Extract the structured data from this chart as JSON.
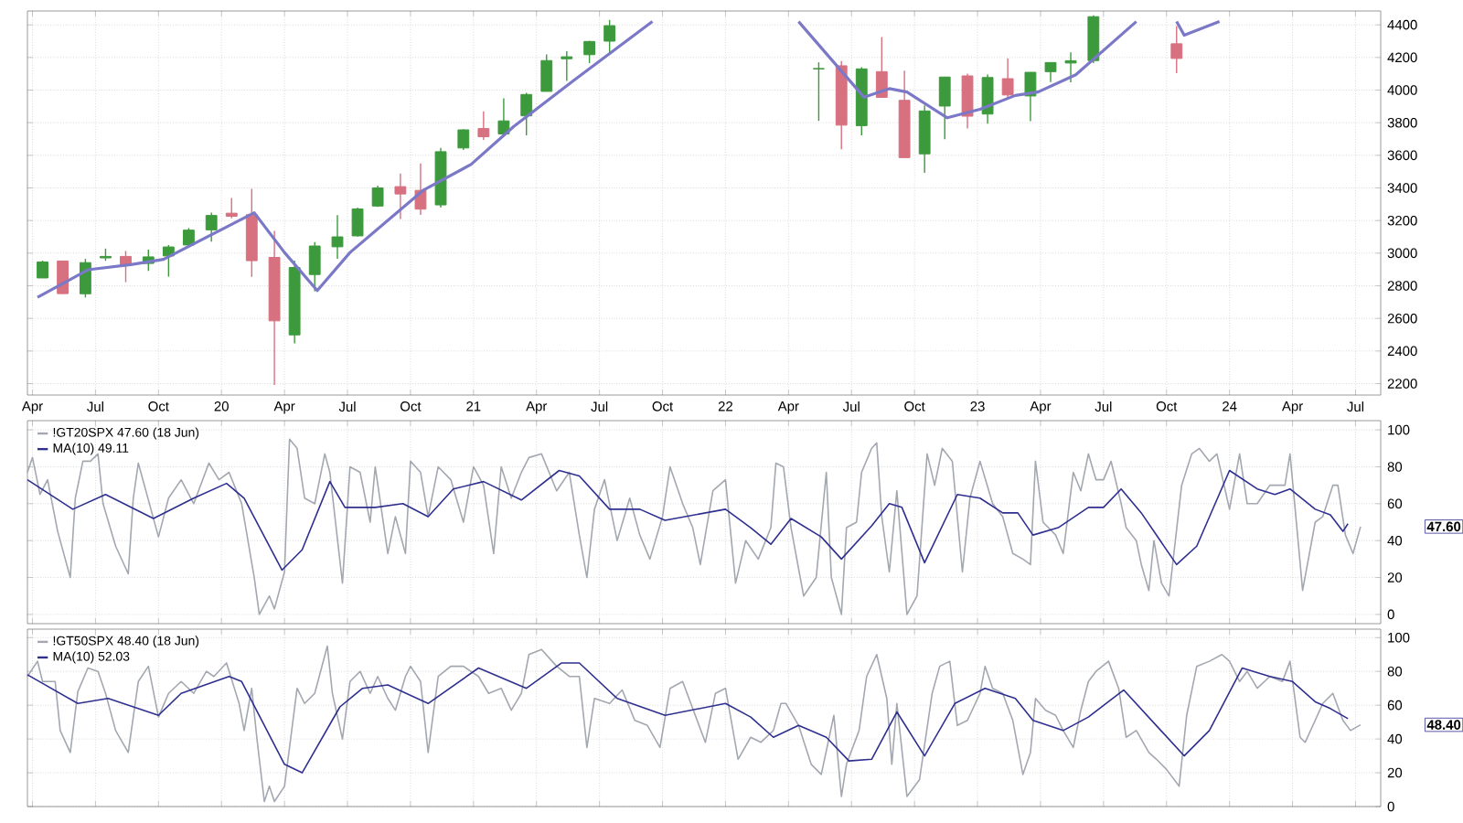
{
  "chart_data": [
    {
      "type": "candlestick",
      "xlim": [
        2019.23,
        2024.6
      ],
      "ylim": [
        2130,
        4485
      ],
      "grid": true,
      "xticks": [
        {
          "value": 2019.25,
          "label": "Apr"
        },
        {
          "value": 2019.5,
          "label": "Jul"
        },
        {
          "value": 2019.75,
          "label": "Oct"
        },
        {
          "value": 2020,
          "label": "20"
        },
        {
          "value": 2020.25,
          "label": "Apr"
        },
        {
          "value": 2020.5,
          "label": "Jul"
        },
        {
          "value": 2020.75,
          "label": "Oct"
        },
        {
          "value": 2021,
          "label": "21"
        },
        {
          "value": 2021.25,
          "label": "Apr"
        },
        {
          "value": 2021.5,
          "label": "Jul"
        },
        {
          "value": 2021.75,
          "label": "Oct"
        },
        {
          "value": 2022,
          "label": "22"
        },
        {
          "value": 2022.25,
          "label": "Apr"
        },
        {
          "value": 2022.5,
          "label": "Jul"
        },
        {
          "value": 2022.75,
          "label": "Oct"
        },
        {
          "value": 2023,
          "label": "23"
        },
        {
          "value": 2023.25,
          "label": "Apr"
        },
        {
          "value": 2023.5,
          "label": "Jul"
        },
        {
          "value": 2023.75,
          "label": "Oct"
        },
        {
          "value": 2024,
          "label": "24"
        },
        {
          "value": 2024.25,
          "label": "Apr"
        },
        {
          "value": 2024.5,
          "label": "Jul"
        }
      ],
      "yticks": [
        2200,
        2400,
        2600,
        2800,
        3000,
        3200,
        3400,
        3600,
        3800,
        4000,
        4200,
        4400
      ],
      "x": [
        2019.29,
        2019.37,
        2019.46,
        2019.54,
        2019.62,
        2019.71,
        2019.79,
        2019.87,
        2019.96,
        2020.04,
        2020.12,
        2020.21,
        2020.29,
        2020.37,
        2020.46,
        2020.54,
        2020.62,
        2020.71,
        2020.79,
        2020.87,
        2020.96,
        2021.04,
        2021.12,
        2021.21,
        2021.29,
        2021.37,
        2021.46,
        2021.54,
        2022.37,
        2022.46,
        2022.54,
        2022.62,
        2022.71,
        2022.79,
        2022.87,
        2022.96,
        2023.04,
        2023.12,
        2023.21,
        2023.29,
        2023.37,
        2023.46,
        2023.79
      ],
      "ohlc": [
        [
          2848,
          2954,
          2848,
          2946
        ],
        [
          2952,
          2954,
          2750,
          2752
        ],
        [
          2751,
          2965,
          2728,
          2942
        ],
        [
          2971,
          3028,
          2953,
          2980
        ],
        [
          2980,
          3014,
          2822,
          2926
        ],
        [
          2937,
          3022,
          2891,
          2977
        ],
        [
          2983,
          3050,
          2856,
          3038
        ],
        [
          3050,
          3154,
          3050,
          3141
        ],
        [
          3143,
          3248,
          3070,
          3231
        ],
        [
          3245,
          3338,
          3214,
          3226
        ],
        [
          3236,
          3394,
          2855,
          2954
        ],
        [
          2974,
          3136,
          2192,
          2585
        ],
        [
          2499,
          2954,
          2447,
          2912
        ],
        [
          2869,
          3068,
          2767,
          3044
        ],
        [
          3039,
          3233,
          2966,
          3100
        ],
        [
          3106,
          3280,
          3101,
          3271
        ],
        [
          3289,
          3414,
          3284,
          3400
        ],
        [
          3408,
          3488,
          3210,
          3363
        ],
        [
          3385,
          3550,
          3234,
          3270
        ],
        [
          3296,
          3646,
          3280,
          3622
        ],
        [
          3645,
          3760,
          3633,
          3756
        ],
        [
          3764,
          3870,
          3694,
          3714
        ],
        [
          3731,
          3950,
          3725,
          3811
        ],
        [
          3842,
          3983,
          3723,
          3973
        ],
        [
          3992,
          4218,
          3992,
          4181
        ],
        [
          4192,
          4238,
          4056,
          4204
        ],
        [
          4217,
          4302,
          4165,
          4298
        ],
        [
          4300,
          4430,
          4233,
          4395
        ],
        [
          4130,
          4170,
          3811,
          4132
        ],
        [
          4149,
          4178,
          3637,
          3785
        ],
        [
          3782,
          4140,
          3722,
          4130
        ],
        [
          4113,
          4325,
          3955,
          3955
        ],
        [
          3937,
          4119,
          3584,
          3586
        ],
        [
          3609,
          3906,
          3492,
          3872
        ],
        [
          3902,
          4080,
          3699,
          4080
        ],
        [
          4087,
          4101,
          3764,
          3840
        ],
        [
          3853,
          4095,
          3794,
          4077
        ],
        [
          4070,
          4195,
          3943,
          3970
        ],
        [
          3964,
          4110,
          3809,
          4109
        ],
        [
          4113,
          4170,
          4049,
          4169
        ],
        [
          4166,
          4231,
          4048,
          4180
        ],
        [
          4181,
          4458,
          4166,
          4450
        ],
        [
          4284,
          4393,
          4104,
          4194
        ]
      ],
      "series": [
        {
          "type": "line",
          "color": "#7b78c8",
          "x": [
            2019.27,
            2019.47,
            2019.64,
            2019.77,
            2020.13,
            2020.25,
            2020.38,
            2020.51,
            2020.8,
            2020.99,
            2021.16,
            2021.4,
            2021.71,
            2021.9,
            2022.29,
            2022.55,
            2022.65,
            2022.72,
            2022.88,
            2023.01,
            2023.15,
            2023.24,
            2023.39,
            2023.63,
            2023.7,
            2023.79,
            2023.82,
            2023.96
          ],
          "values": [
            2729,
            2898,
            2930,
            2962,
            3248,
            3004,
            2771,
            3004,
            3385,
            3544,
            3777,
            4062,
            4420,
            null,
            4420,
            3956,
            4009,
            3988,
            3830,
            3882,
            3967,
            3988,
            4094,
            4420,
            null,
            4420,
            4337,
            4420
          ]
        }
      ]
    },
    {
      "type": "line",
      "xlim": [
        2019.23,
        2024.6
      ],
      "ylim": [
        -5,
        105
      ],
      "grid": true,
      "legend": "top left",
      "tick_labels": "y",
      "xticks": [
        {
          "value": 2019.25,
          "label": null
        },
        {
          "value": 2019.5,
          "label": null
        },
        {
          "value": 2019.75,
          "label": null
        },
        {
          "value": 2020,
          "label": null
        },
        {
          "value": 2020.25,
          "label": null
        },
        {
          "value": 2020.5,
          "label": null
        },
        {
          "value": 2020.75,
          "label": null
        },
        {
          "value": 2021,
          "label": null
        },
        {
          "value": 2021.25,
          "label": null
        },
        {
          "value": 2021.5,
          "label": null
        },
        {
          "value": 2021.75,
          "label": null
        },
        {
          "value": 2022,
          "label": null
        },
        {
          "value": 2022.25,
          "label": null
        },
        {
          "value": 2022.5,
          "label": null
        },
        {
          "value": 2022.75,
          "label": null
        },
        {
          "value": 2023,
          "label": null
        },
        {
          "value": 2023.25,
          "label": null
        },
        {
          "value": 2023.5,
          "label": null
        },
        {
          "value": 2023.75,
          "label": null
        },
        {
          "value": 2024,
          "label": null
        },
        {
          "value": 2024.25,
          "label": null
        },
        {
          "value": 2024.5,
          "label": null
        }
      ],
      "yticks": [
        0,
        20,
        40,
        60,
        80,
        100
      ],
      "annotations": [
        "47.60"
      ],
      "series": [
        {
          "name": "!GT20SPX 47.60 (18 Jun)",
          "color": "#a3a7b0",
          "x": [
            2019.23,
            2019.25,
            2019.28,
            2019.31,
            2019.35,
            2019.4,
            2019.42,
            2019.45,
            2019.48,
            2019.51,
            2019.53,
            2019.58,
            2019.63,
            2019.65,
            2019.67,
            2019.75,
            2019.79,
            2019.84,
            2019.89,
            2019.95,
            2019.99,
            2020.03,
            2020.08,
            2020.13,
            2020.15,
            2020.19,
            2020.21,
            2020.25,
            2020.27,
            2020.3,
            2020.33,
            2020.37,
            2020.41,
            2020.43,
            2020.48,
            2020.51,
            2020.55,
            2020.59,
            2020.61,
            2020.66,
            2020.69,
            2020.73,
            2020.75,
            2020.79,
            2020.82,
            2020.86,
            2020.91,
            2020.96,
            2021.0,
            2021.04,
            2021.08,
            2021.11,
            2021.15,
            2021.19,
            2021.22,
            2021.27,
            2021.33,
            2021.38,
            2021.42,
            2021.45,
            2021.48,
            2021.52,
            2021.57,
            2021.62,
            2021.66,
            2021.7,
            2021.75,
            2021.78,
            2021.83,
            2021.87,
            2021.9,
            2021.95,
            2022.0,
            2022.04,
            2022.08,
            2022.13,
            2022.18,
            2022.2,
            2022.23,
            2022.26,
            2022.31,
            2022.36,
            2022.4,
            2022.42,
            2022.46,
            2022.48,
            2022.52,
            2022.54,
            2022.58,
            2022.6,
            2022.62,
            2022.65,
            2022.68,
            2022.72,
            2022.76,
            2022.8,
            2022.83,
            2022.86,
            2022.9,
            2022.94,
            2022.97,
            2023.01,
            2023.06,
            2023.1,
            2023.14,
            2023.18,
            2023.21,
            2023.23,
            2023.26,
            2023.31,
            2023.34,
            2023.38,
            2023.41,
            2023.44,
            2023.47,
            2023.5,
            2023.53,
            2023.57,
            2023.59,
            2023.63,
            2023.65,
            2023.68,
            2023.7,
            2023.73,
            2023.76,
            2023.81,
            2023.85,
            2023.88,
            2023.92,
            2023.95,
            2024.0,
            2024.04,
            2024.07,
            2024.11,
            2024.16,
            2024.22,
            2024.24,
            2024.27,
            2024.29,
            2024.34,
            2024.37,
            2024.41,
            2024.43,
            2024.46,
            2024.49,
            2024.52
          ],
          "values": [
            77,
            85,
            65,
            73,
            45,
            20,
            63,
            83,
            83,
            87,
            60,
            37,
            22,
            63,
            82,
            42,
            63,
            73,
            60,
            82,
            73,
            77,
            60,
            20,
            0,
            10,
            3,
            23,
            95,
            90,
            63,
            60,
            87,
            77,
            17,
            80,
            77,
            50,
            80,
            33,
            53,
            33,
            83,
            77,
            53,
            80,
            73,
            50,
            80,
            70,
            33,
            80,
            63,
            77,
            85,
            87,
            67,
            77,
            43,
            20,
            57,
            73,
            40,
            63,
            43,
            30,
            53,
            80,
            60,
            47,
            27,
            67,
            73,
            17,
            40,
            30,
            47,
            82,
            80,
            47,
            10,
            20,
            77,
            20,
            0,
            47,
            50,
            77,
            90,
            93,
            53,
            23,
            67,
            0,
            10,
            87,
            70,
            90,
            83,
            23,
            63,
            83,
            60,
            53,
            33,
            30,
            27,
            83,
            50,
            43,
            33,
            77,
            67,
            87,
            73,
            73,
            83,
            60,
            47,
            40,
            27,
            13,
            40,
            17,
            10,
            70,
            87,
            90,
            83,
            87,
            57,
            87,
            60,
            60,
            70,
            70,
            87,
            43,
            13,
            50,
            53,
            70,
            70,
            43,
            33,
            47.6
          ]
        },
        {
          "name": "MA(10) 49.11",
          "color": "#2e2f8f",
          "x": [
            2019.23,
            2019.41,
            2019.54,
            2019.73,
            2019.89,
            2020.02,
            2020.09,
            2020.24,
            2020.32,
            2020.43,
            2020.49,
            2020.61,
            2020.72,
            2020.82,
            2020.92,
            2021.04,
            2021.19,
            2021.34,
            2021.42,
            2021.54,
            2021.66,
            2021.76,
            2022.0,
            2022.1,
            2022.18,
            2022.26,
            2022.38,
            2022.46,
            2022.58,
            2022.65,
            2022.7,
            2022.79,
            2022.92,
            2023.01,
            2023.1,
            2023.16,
            2023.22,
            2023.32,
            2023.44,
            2023.5,
            2023.57,
            2023.65,
            2023.79,
            2023.87,
            2024.0,
            2024.11,
            2024.18,
            2024.24,
            2024.34,
            2024.4,
            2024.45,
            2024.47
          ],
          "values": [
            73,
            57,
            65,
            52,
            63,
            71,
            63,
            24,
            35,
            72,
            58,
            58,
            60,
            53,
            68,
            72,
            62,
            78,
            75,
            57,
            57,
            51,
            57,
            47,
            38,
            52,
            42,
            30,
            48,
            60,
            58,
            28,
            65,
            63,
            55,
            55,
            43,
            47,
            58,
            58,
            68,
            55,
            27,
            37,
            78,
            68,
            65,
            68,
            57,
            54,
            45,
            49.11
          ]
        }
      ]
    },
    {
      "type": "line",
      "xlim": [
        2019.23,
        2024.6
      ],
      "ylim": [
        0,
        105
      ],
      "grid": true,
      "legend": "top left",
      "tick_labels": "y",
      "xticks": [
        {
          "value": 2019.25,
          "label": null
        },
        {
          "value": 2019.5,
          "label": null
        },
        {
          "value": 2019.75,
          "label": null
        },
        {
          "value": 2020,
          "label": null
        },
        {
          "value": 2020.25,
          "label": null
        },
        {
          "value": 2020.5,
          "label": null
        },
        {
          "value": 2020.75,
          "label": null
        },
        {
          "value": 2021,
          "label": null
        },
        {
          "value": 2021.25,
          "label": null
        },
        {
          "value": 2021.5,
          "label": null
        },
        {
          "value": 2021.75,
          "label": null
        },
        {
          "value": 2022,
          "label": null
        },
        {
          "value": 2022.25,
          "label": null
        },
        {
          "value": 2022.5,
          "label": null
        },
        {
          "value": 2022.75,
          "label": null
        },
        {
          "value": 2023,
          "label": null
        },
        {
          "value": 2023.25,
          "label": null
        },
        {
          "value": 2023.5,
          "label": null
        },
        {
          "value": 2023.75,
          "label": null
        },
        {
          "value": 2024,
          "label": null
        },
        {
          "value": 2024.25,
          "label": null
        },
        {
          "value": 2024.5,
          "label": null
        }
      ],
      "yticks": [
        0,
        20,
        40,
        60,
        80,
        100
      ],
      "annotations": [
        "48.40"
      ],
      "series": [
        {
          "name": "!GT50SPX 48.40 (18 Jun)",
          "color": "#a3a7b0",
          "x": [
            2019.23,
            2019.27,
            2019.29,
            2019.34,
            2019.36,
            2019.4,
            2019.43,
            2019.47,
            2019.51,
            2019.54,
            2019.58,
            2019.63,
            2019.67,
            2019.71,
            2019.75,
            2019.79,
            2019.84,
            2019.89,
            2019.94,
            2019.97,
            2020.02,
            2020.07,
            2020.09,
            2020.12,
            2020.14,
            2020.17,
            2020.19,
            2020.21,
            2020.25,
            2020.27,
            2020.3,
            2020.33,
            2020.37,
            2020.42,
            2020.44,
            2020.48,
            2020.51,
            2020.55,
            2020.59,
            2020.62,
            2020.66,
            2020.69,
            2020.73,
            2020.75,
            2020.79,
            2020.82,
            2020.86,
            2020.91,
            2020.96,
            2021.02,
            2021.06,
            2021.11,
            2021.15,
            2021.19,
            2021.22,
            2021.27,
            2021.33,
            2021.38,
            2021.42,
            2021.45,
            2021.48,
            2021.54,
            2021.59,
            2021.64,
            2021.69,
            2021.74,
            2021.78,
            2021.83,
            2021.88,
            2021.92,
            2021.96,
            2022.0,
            2022.05,
            2022.1,
            2022.14,
            2022.19,
            2022.22,
            2022.24,
            2022.29,
            2022.34,
            2022.38,
            2022.43,
            2022.46,
            2022.48,
            2022.53,
            2022.56,
            2022.6,
            2022.64,
            2022.66,
            2022.68,
            2022.72,
            2022.77,
            2022.82,
            2022.85,
            2022.89,
            2022.92,
            2022.96,
            2023.01,
            2023.03,
            2023.06,
            2023.1,
            2023.14,
            2023.18,
            2023.21,
            2023.23,
            2023.27,
            2023.31,
            2023.34,
            2023.38,
            2023.41,
            2023.44,
            2023.47,
            2023.52,
            2023.56,
            2023.59,
            2023.63,
            2023.68,
            2023.71,
            2023.75,
            2023.8,
            2023.83,
            2023.87,
            2023.92,
            2023.97,
            2024.0,
            2024.04,
            2024.07,
            2024.11,
            2024.16,
            2024.21,
            2024.24,
            2024.28,
            2024.3,
            2024.34,
            2024.37,
            2024.41,
            2024.45,
            2024.48,
            2024.52
          ],
          "values": [
            77,
            86,
            74,
            74,
            45,
            32,
            68,
            82,
            80,
            67,
            45,
            32,
            74,
            83,
            53,
            67,
            74,
            67,
            80,
            77,
            85,
            61,
            45,
            70,
            41,
            3,
            12,
            3,
            12,
            35,
            70,
            61,
            67,
            95,
            67,
            40,
            74,
            80,
            67,
            77,
            64,
            57,
            77,
            83,
            74,
            32,
            77,
            83,
            83,
            77,
            67,
            70,
            57,
            67,
            90,
            93,
            83,
            77,
            77,
            35,
            64,
            61,
            69,
            51,
            48,
            35,
            70,
            74,
            54,
            38,
            67,
            70,
            28,
            41,
            38,
            45,
            61,
            61,
            48,
            25,
            19,
            54,
            6,
            25,
            45,
            77,
            90,
            64,
            25,
            61,
            6,
            16,
            67,
            83,
            86,
            48,
            51,
            67,
            83,
            70,
            67,
            51,
            19,
            32,
            64,
            57,
            54,
            45,
            35,
            57,
            74,
            80,
            86,
            70,
            41,
            45,
            32,
            28,
            22,
            12,
            54,
            83,
            86,
            90,
            86,
            74,
            80,
            70,
            77,
            74,
            86,
            41,
            38,
            51,
            61,
            67,
            51,
            45,
            48.4
          ]
        },
        {
          "name": "MA(10) 52.03",
          "color": "#2e2f8f",
          "x": [
            2019.23,
            2019.43,
            2019.55,
            2019.75,
            2019.84,
            2020.03,
            2020.08,
            2020.25,
            2020.32,
            2020.47,
            2020.56,
            2020.66,
            2020.82,
            2021.02,
            2021.21,
            2021.35,
            2021.42,
            2021.57,
            2021.76,
            2022.0,
            2022.1,
            2022.19,
            2022.29,
            2022.4,
            2022.49,
            2022.58,
            2022.68,
            2022.79,
            2022.91,
            2023.03,
            2023.15,
            2023.22,
            2023.34,
            2023.44,
            2023.58,
            2023.82,
            2023.92,
            2024.05,
            2024.16,
            2024.25,
            2024.34,
            2024.4,
            2024.47
          ],
          "values": [
            78,
            61,
            64,
            54,
            67,
            77,
            74,
            25,
            20,
            59,
            70,
            72,
            61,
            82,
            70,
            85,
            85,
            64,
            54,
            61,
            53,
            41,
            48,
            41,
            27,
            28,
            56,
            30,
            61,
            70,
            64,
            51,
            45,
            53,
            69,
            30,
            45,
            82,
            77,
            74,
            62,
            58,
            52.03
          ]
        }
      ]
    }
  ]
}
